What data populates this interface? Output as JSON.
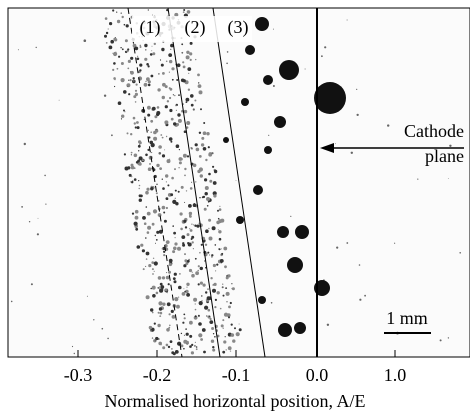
{
  "figure": {
    "annotations": [
      "(1)",
      "(2)",
      "(3)"
    ],
    "cathode_label": [
      "Cathode",
      "plane"
    ],
    "scale_bar": "1 mm",
    "axis": {
      "ticks": [
        "-0.3",
        "-0.2",
        "-0.1",
        "0.0",
        "1.0"
      ],
      "label": "Normalised horizontal position, A/E"
    }
  }
}
